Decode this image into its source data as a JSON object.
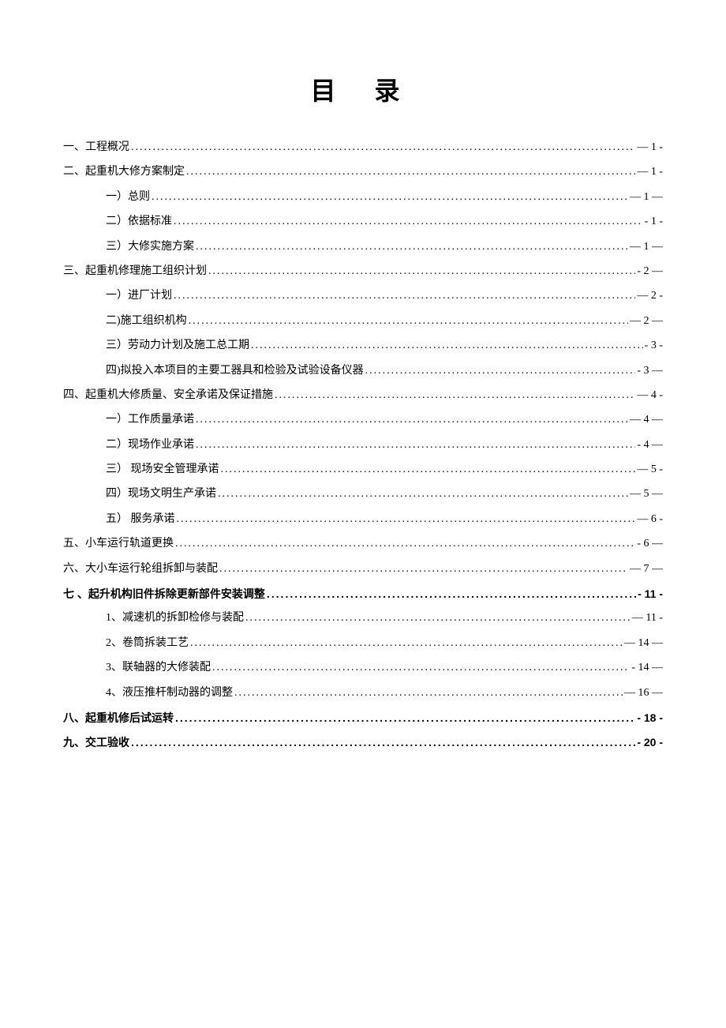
{
  "title": "目 录",
  "entries": [
    {
      "label": "一、工程概况",
      "page": "— 1 -",
      "level": 0,
      "bold": false
    },
    {
      "label": "二、起重机大修方案制定",
      "page": "— 1 -",
      "level": 0,
      "bold": false
    },
    {
      "label": "一）总则",
      "page": "— 1 —",
      "level": 1,
      "bold": false
    },
    {
      "label": "二）依据标准",
      "page": "- 1 -",
      "level": 1,
      "bold": false
    },
    {
      "label": "三）大修实施方案",
      "page": "— 1 —",
      "level": 1,
      "bold": false
    },
    {
      "label": "三、起重机修理施工组织计划",
      "page": "- 2 —",
      "level": 0,
      "bold": false
    },
    {
      "label": "一）进厂计划",
      "page": "— 2 -",
      "level": 1,
      "bold": false
    },
    {
      "label": "二)施工组织机构",
      "page": "— 2 —",
      "level": 1,
      "bold": false
    },
    {
      "label": "三）劳动力计划及施工总工期",
      "page": "- 3 -",
      "level": 1,
      "bold": false
    },
    {
      "label": "四)拟投入本项目的主要工器具和检验及试验设备仪器",
      "page": "- 3 —",
      "level": 1,
      "bold": false
    },
    {
      "label": "四、起重机大修质量、安全承诺及保证措施",
      "page": "— 4 -",
      "level": 0,
      "bold": false
    },
    {
      "label": "一）工作质量承诺",
      "page": "— 4 —",
      "level": 1,
      "bold": false
    },
    {
      "label": "二）现场作业承诺",
      "page": "- 4 —",
      "level": 1,
      "bold": false
    },
    {
      "label": "三） 现场安全管理承诺",
      "page": "— 5 -",
      "level": 1,
      "bold": false
    },
    {
      "label": "四）现场文明生产承诺",
      "page": "— 5 —",
      "level": 1,
      "bold": false
    },
    {
      "label": "五） 服务承诺",
      "page": "— 6 -",
      "level": 1,
      "bold": false
    },
    {
      "label": "五、小车运行轨道更换",
      "page": "- 6 —",
      "level": 0,
      "bold": false
    },
    {
      "label": "六、大小车运行轮组拆卸与装配",
      "page": "— 7 —",
      "level": 0,
      "bold": false
    },
    {
      "label": "七 、起升机构旧件拆除更新部件安装调整",
      "page": "- 11 -",
      "level": 0,
      "bold": true
    },
    {
      "label": "1、减速机的拆卸检修与装配",
      "page": "— 11 -",
      "level": 1,
      "bold": false
    },
    {
      "label": "2、卷筒拆装工艺",
      "page": "— 14 —",
      "level": 1,
      "bold": false
    },
    {
      "label": "3、联轴器的大修装配",
      "page": "- 14 —",
      "level": 1,
      "bold": false
    },
    {
      "label": "4、液压推杆制动器的调整",
      "page": "— 16 —",
      "level": 1,
      "bold": false
    },
    {
      "label": "八、起重机修后试运转",
      "page": "- 18 -",
      "level": 0,
      "bold": true
    },
    {
      "label": "九、交工验收",
      "page": "- 20 -",
      "level": 0,
      "bold": true
    }
  ]
}
